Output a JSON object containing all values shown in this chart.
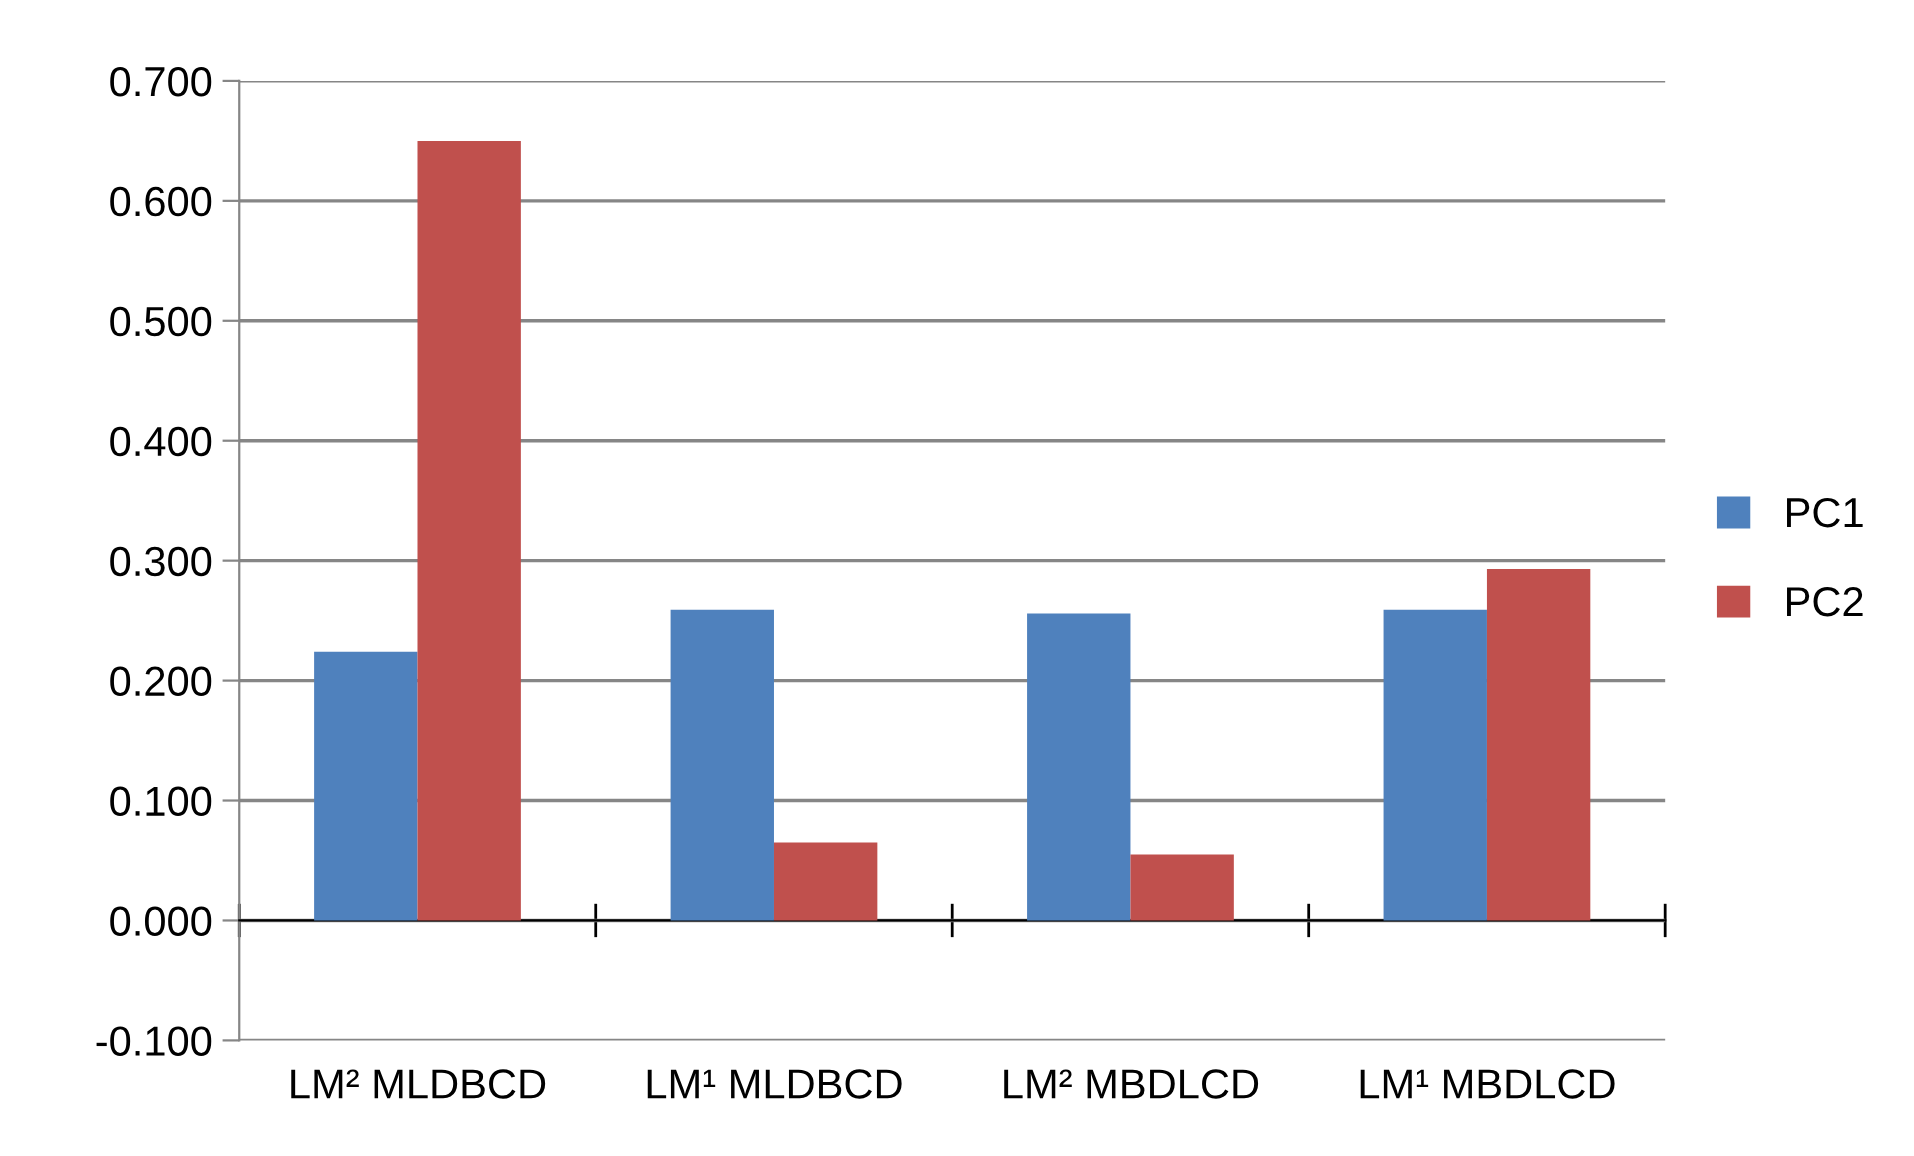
{
  "chart_data": {
    "type": "bar",
    "categories": [
      "LM² MLDBCD",
      "LM¹ MLDBCD",
      "LM² MBDLCD",
      "LM¹ MBDLCD"
    ],
    "series": [
      {
        "name": "PC1",
        "color": "#4f81bd",
        "values": [
          0.224,
          0.259,
          0.256,
          0.259
        ]
      },
      {
        "name": "PC2",
        "color": "#c0504d",
        "values": [
          0.65,
          0.065,
          0.055,
          0.293
        ]
      }
    ],
    "ylim": [
      -0.1,
      0.7
    ],
    "yticks": [
      {
        "value": -0.1,
        "label": "-0.100"
      },
      {
        "value": 0,
        "label": "0.000"
      },
      {
        "value": 0.1,
        "label": "0.100"
      },
      {
        "value": 0.2,
        "label": "0.200"
      },
      {
        "value": 0.3,
        "label": "0.300"
      },
      {
        "value": 0.4,
        "label": "0.400"
      },
      {
        "value": 0.5,
        "label": "0.500"
      },
      {
        "value": 0.6,
        "label": "0.600"
      },
      {
        "value": 0.7,
        "label": "0.700"
      }
    ],
    "grid": "y",
    "legend": "right"
  }
}
